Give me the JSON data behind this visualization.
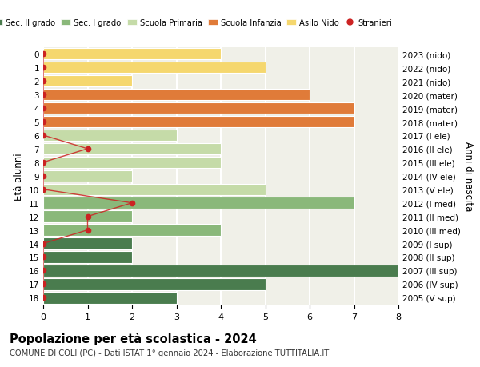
{
  "ages": [
    18,
    17,
    16,
    15,
    14,
    13,
    12,
    11,
    10,
    9,
    8,
    7,
    6,
    5,
    4,
    3,
    2,
    1,
    0
  ],
  "years_labels": [
    "2005 (V sup)",
    "2006 (IV sup)",
    "2007 (III sup)",
    "2008 (II sup)",
    "2009 (I sup)",
    "2010 (III med)",
    "2011 (II med)",
    "2012 (I med)",
    "2013 (V ele)",
    "2014 (IV ele)",
    "2015 (III ele)",
    "2016 (II ele)",
    "2017 (I ele)",
    "2018 (mater)",
    "2019 (mater)",
    "2020 (mater)",
    "2021 (nido)",
    "2022 (nido)",
    "2023 (nido)"
  ],
  "bar_values": [
    3,
    5,
    8,
    2,
    2,
    4,
    2,
    7,
    5,
    2,
    4,
    4,
    3,
    7,
    7,
    6,
    2,
    5,
    4
  ],
  "bar_colors": [
    "#4a7c4e",
    "#4a7c4e",
    "#4a7c4e",
    "#4a7c4e",
    "#4a7c4e",
    "#8ab87a",
    "#8ab87a",
    "#8ab87a",
    "#c5dba8",
    "#c5dba8",
    "#c5dba8",
    "#c5dba8",
    "#c5dba8",
    "#e07b39",
    "#e07b39",
    "#e07b39",
    "#f5d76e",
    "#f5d76e",
    "#f5d76e"
  ],
  "stranieri_x": [
    0,
    0,
    0,
    0,
    0,
    1,
    1,
    2,
    0,
    0,
    0,
    1,
    0,
    0,
    0,
    0,
    0,
    0,
    0
  ],
  "title": "Popolazione per età scolastica - 2024",
  "subtitle": "COMUNE DI COLI (PC) - Dati ISTAT 1° gennaio 2024 - Elaborazione TUTTITALIA.IT",
  "ylabel_left": "Età alunni",
  "ylabel_right": "Anni di nascita",
  "xlim": [
    0,
    8
  ],
  "legend_items": [
    {
      "label": "Sec. II grado",
      "color": "#4a7c4e"
    },
    {
      "label": "Sec. I grado",
      "color": "#8ab87a"
    },
    {
      "label": "Scuola Primaria",
      "color": "#c5dba8"
    },
    {
      "label": "Scuola Infanzia",
      "color": "#e07b39"
    },
    {
      "label": "Asilo Nido",
      "color": "#f5d76e"
    },
    {
      "label": "Stranieri",
      "color": "#cc2222"
    }
  ],
  "background_color": "#ffffff",
  "axes_bg_color": "#f0f0e8",
  "grid_color": "#ffffff",
  "bar_height": 0.85
}
